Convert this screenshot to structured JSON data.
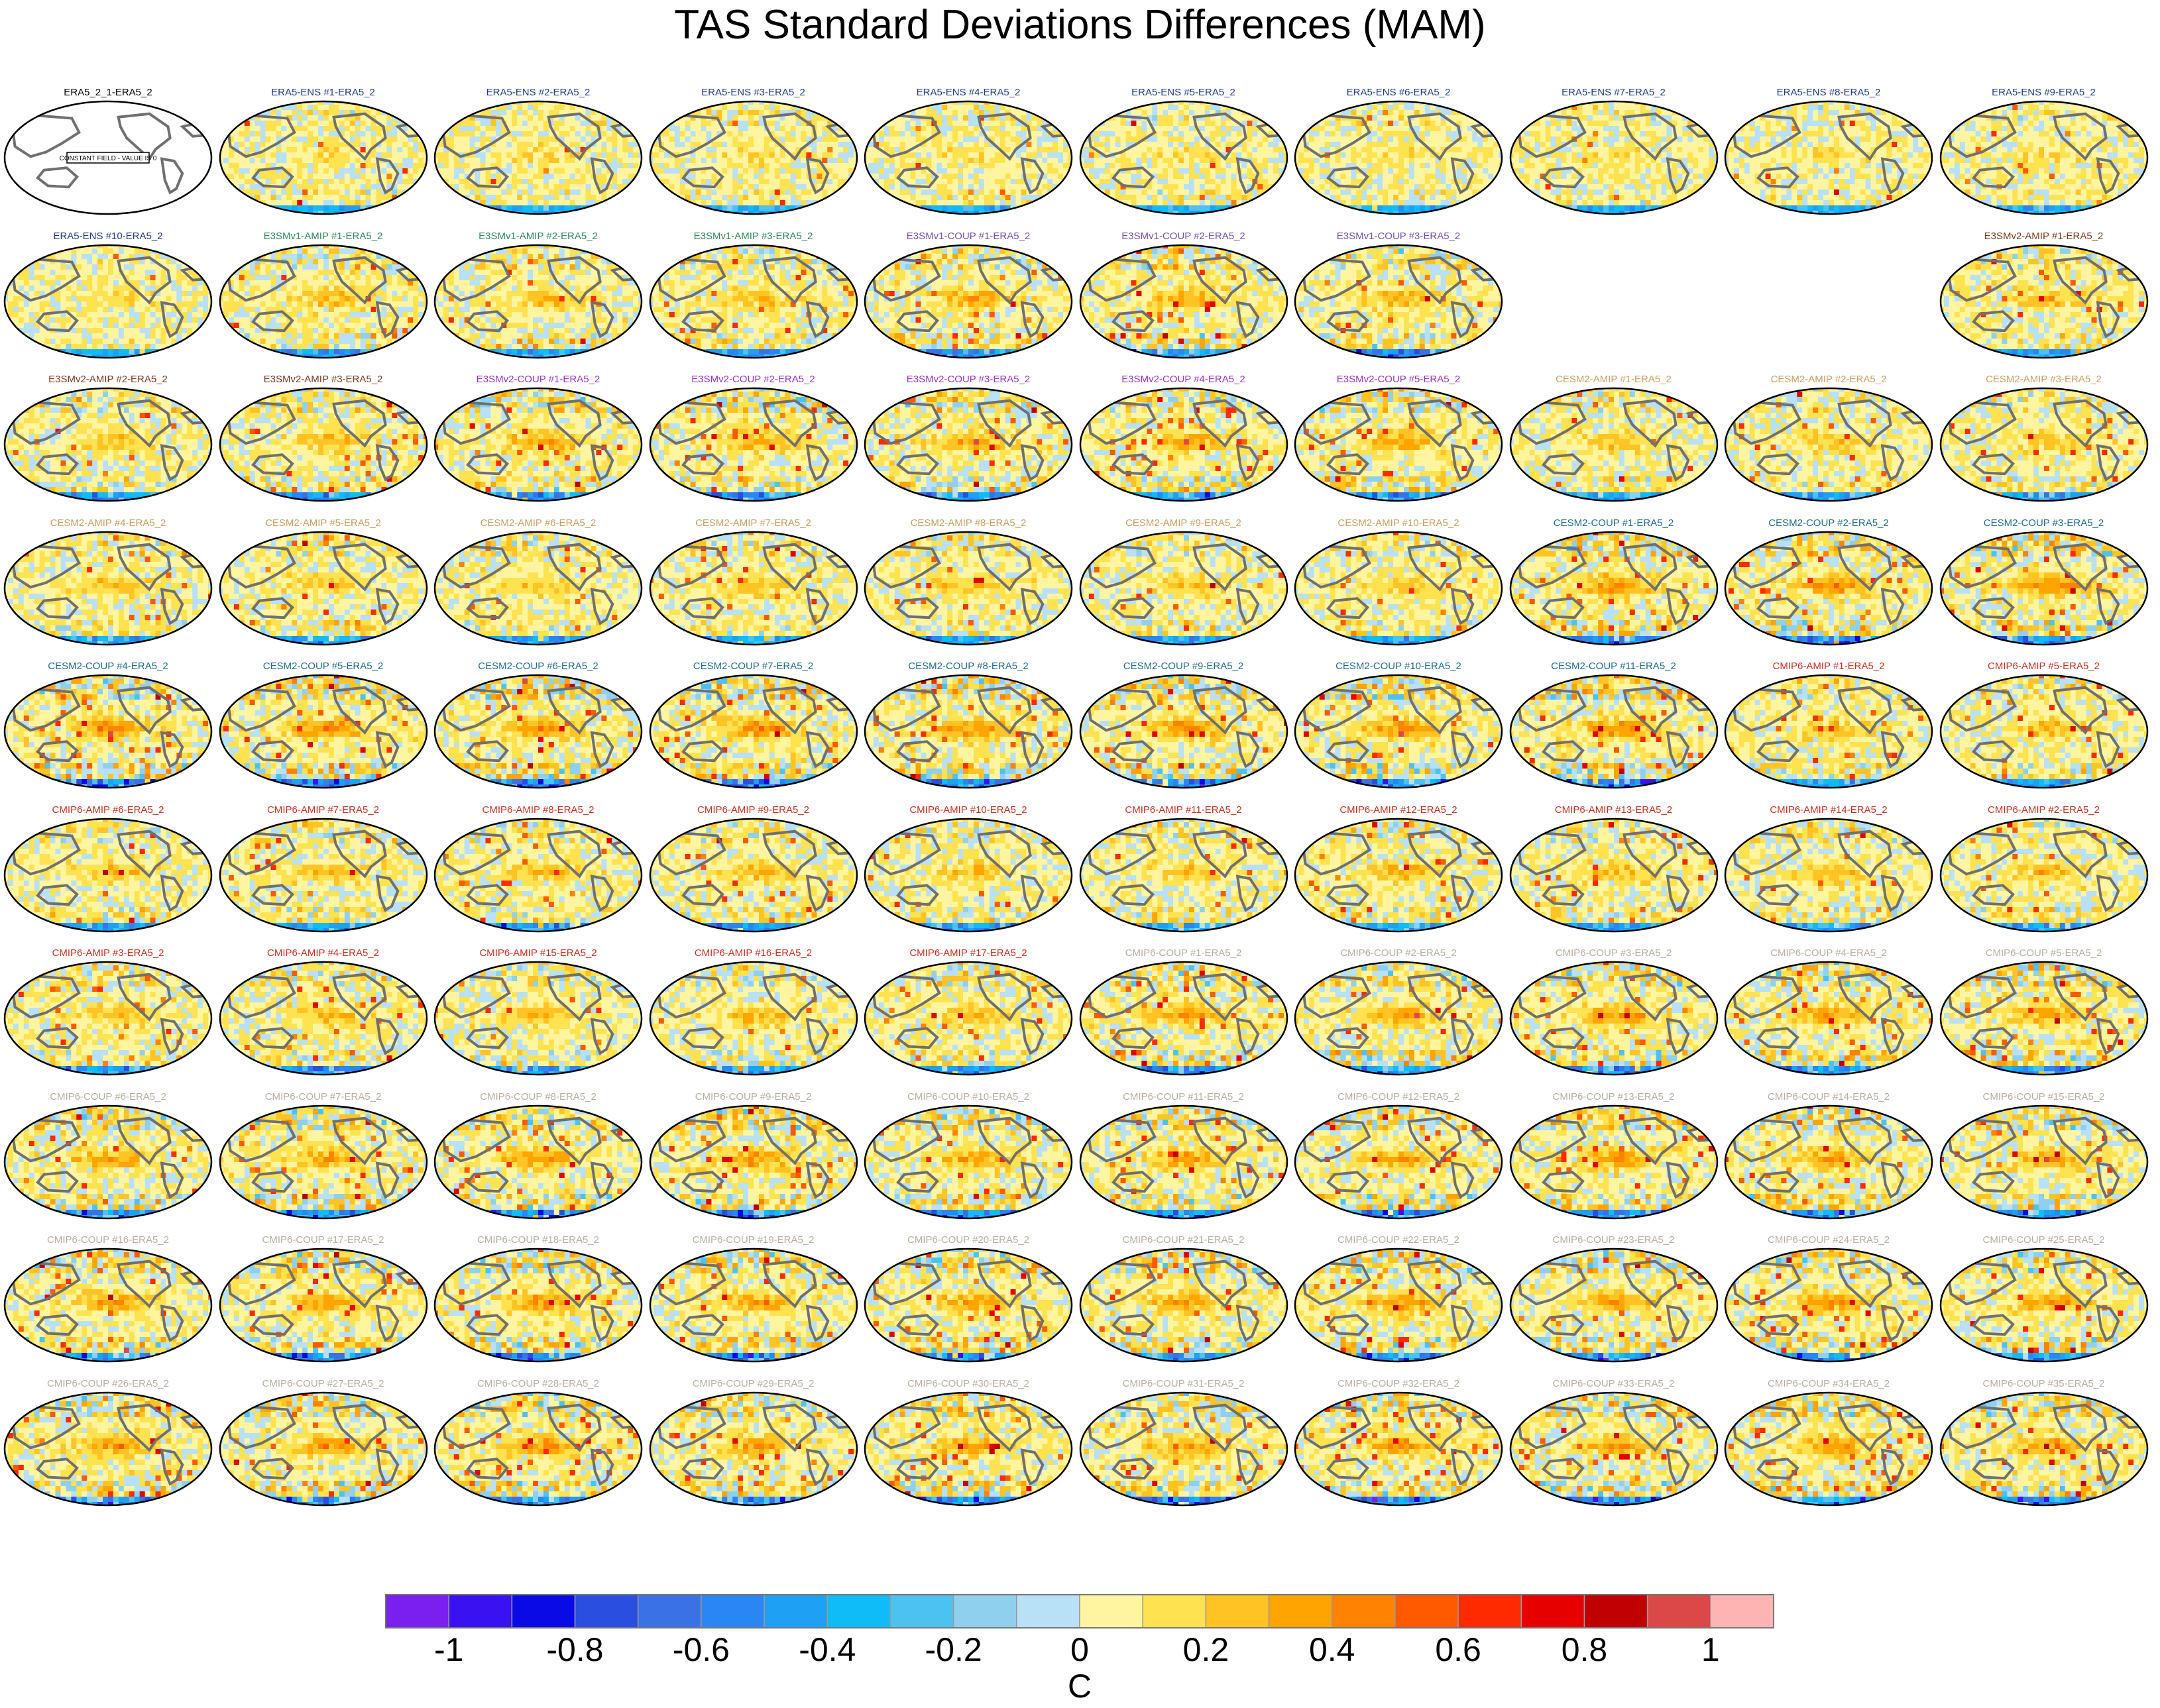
{
  "title": "TAS Standard Deviations Differences (MAM)",
  "panel_note": "CONSTANT FIELD - VALUE IS 0",
  "group_colors": {
    "era": "#1f3b8c",
    "e1amip": "#2e8b57",
    "e1coup": "#7a4fb0",
    "e2amip": "#7a3b1e",
    "e2coup": "#9933cc",
    "cesmamip": "#c8a060",
    "cesmcoup": "#1f6f8b",
    "cmipamip": "#d03020",
    "cmipcoup": "#b8b0a0",
    "ref": "#000000"
  },
  "colorbar": {
    "colors": [
      "#7b1ff0",
      "#3a12f2",
      "#0a0ae6",
      "#2a4ee0",
      "#3a72e6",
      "#2a86f4",
      "#1ea0f4",
      "#10bcf8",
      "#4cc2f2",
      "#8ed0ee",
      "#b8e0f6",
      "#fff5a0",
      "#ffe250",
      "#ffc424",
      "#ffa400",
      "#ff8200",
      "#ff5a00",
      "#ff2a00",
      "#e60000",
      "#c00000",
      "#dc4848",
      "#ffb4b4"
    ],
    "tick_labels": [
      "-1",
      "-0.8",
      "-0.6",
      "-0.4",
      "-0.2",
      "0",
      "0.2",
      "0.4",
      "0.6",
      "0.8",
      "1"
    ],
    "unit_label": "C"
  },
  "chart_data": {
    "type": "heatmap",
    "title": "TAS Standard Deviations Differences (MAM)",
    "projection": "Robinson (Pacific-centered), global maps",
    "value_range": [
      -1.1,
      1.1
    ],
    "unit": "C",
    "layout": "10 rows x 10 columns of map panels",
    "panels": [
      {
        "label": "ERA5_2_1-ERA5_2",
        "group": "ref",
        "intensity": 0,
        "constant": true
      },
      {
        "label": "ERA5-ENS    #1-ERA5_2",
        "group": "era",
        "intensity": 0.3
      },
      {
        "label": "ERA5-ENS    #2-ERA5_2",
        "group": "era",
        "intensity": 0.3
      },
      {
        "label": "ERA5-ENS    #3-ERA5_2",
        "group": "era",
        "intensity": 0.3
      },
      {
        "label": "ERA5-ENS    #4-ERA5_2",
        "group": "era",
        "intensity": 0.3
      },
      {
        "label": "ERA5-ENS    #5-ERA5_2",
        "group": "era",
        "intensity": 0.3
      },
      {
        "label": "ERA5-ENS    #6-ERA5_2",
        "group": "era",
        "intensity": 0.3
      },
      {
        "label": "ERA5-ENS    #7-ERA5_2",
        "group": "era",
        "intensity": 0.3
      },
      {
        "label": "ERA5-ENS    #8-ERA5_2",
        "group": "era",
        "intensity": 0.3
      },
      {
        "label": "ERA5-ENS    #9-ERA5_2",
        "group": "era",
        "intensity": 0.3
      },
      {
        "label": "ERA5-ENS    #10-ERA5_2",
        "group": "era",
        "intensity": 0.3
      },
      {
        "label": "E3SMv1-AMIP #1-ERA5_2",
        "group": "e1amip",
        "intensity": 0.6
      },
      {
        "label": "E3SMv1-AMIP #2-ERA5_2",
        "group": "e1amip",
        "intensity": 0.6
      },
      {
        "label": "E3SMv1-AMIP #3-ERA5_2",
        "group": "e1amip",
        "intensity": 0.6
      },
      {
        "label": "E3SMv1-COUP #1-ERA5_2",
        "group": "e1coup",
        "intensity": 0.8
      },
      {
        "label": "E3SMv1-COUP #2-ERA5_2",
        "group": "e1coup",
        "intensity": 0.8
      },
      {
        "label": "E3SMv1-COUP #3-ERA5_2",
        "group": "e1coup",
        "intensity": 0.8
      },
      {
        "label": "",
        "group": "blank",
        "intensity": 0,
        "blank": true
      },
      {
        "label": "",
        "group": "blank",
        "intensity": 0,
        "blank": true
      },
      {
        "label": "E3SMv2-AMIP #1-ERA5_2",
        "group": "e2amip",
        "intensity": 0.6
      },
      {
        "label": "E3SMv2-AMIP #2-ERA5_2",
        "group": "e2amip",
        "intensity": 0.6
      },
      {
        "label": "E3SMv2-AMIP #3-ERA5_2",
        "group": "e2amip",
        "intensity": 0.6
      },
      {
        "label": "E3SMv2-COUP #1-ERA5_2",
        "group": "e2coup",
        "intensity": 0.8
      },
      {
        "label": "E3SMv2-COUP #2-ERA5_2",
        "group": "e2coup",
        "intensity": 0.8
      },
      {
        "label": "E3SMv2-COUP #3-ERA5_2",
        "group": "e2coup",
        "intensity": 0.8
      },
      {
        "label": "E3SMv2-COUP #4-ERA5_2",
        "group": "e2coup",
        "intensity": 0.8
      },
      {
        "label": "E3SMv2-COUP #5-ERA5_2",
        "group": "e2coup",
        "intensity": 0.8
      },
      {
        "label": "CESM2-AMIP  #1-ERA5_2",
        "group": "cesmamip",
        "intensity": 0.55
      },
      {
        "label": "CESM2-AMIP  #2-ERA5_2",
        "group": "cesmamip",
        "intensity": 0.55
      },
      {
        "label": "CESM2-AMIP  #3-ERA5_2",
        "group": "cesmamip",
        "intensity": 0.55
      },
      {
        "label": "CESM2-AMIP  #4-ERA5_2",
        "group": "cesmamip",
        "intensity": 0.55
      },
      {
        "label": "CESM2-AMIP  #5-ERA5_2",
        "group": "cesmamip",
        "intensity": 0.55
      },
      {
        "label": "CESM2-AMIP  #6-ERA5_2",
        "group": "cesmamip",
        "intensity": 0.55
      },
      {
        "label": "CESM2-AMIP  #7-ERA5_2",
        "group": "cesmamip",
        "intensity": 0.55
      },
      {
        "label": "CESM2-AMIP  #8-ERA5_2",
        "group": "cesmamip",
        "intensity": 0.55
      },
      {
        "label": "CESM2-AMIP  #9-ERA5_2",
        "group": "cesmamip",
        "intensity": 0.55
      },
      {
        "label": "CESM2-AMIP  #10-ERA5_2",
        "group": "cesmamip",
        "intensity": 0.55
      },
      {
        "label": "CESM2-COUP  #1-ERA5_2",
        "group": "cesmcoup",
        "intensity": 1.0
      },
      {
        "label": "CESM2-COUP  #2-ERA5_2",
        "group": "cesmcoup",
        "intensity": 1.0
      },
      {
        "label": "CESM2-COUP  #3-ERA5_2",
        "group": "cesmcoup",
        "intensity": 1.0
      },
      {
        "label": "CESM2-COUP  #4-ERA5_2",
        "group": "cesmcoup",
        "intensity": 1.0
      },
      {
        "label": "CESM2-COUP  #5-ERA5_2",
        "group": "cesmcoup",
        "intensity": 1.0
      },
      {
        "label": "CESM2-COUP  #6-ERA5_2",
        "group": "cesmcoup",
        "intensity": 1.0
      },
      {
        "label": "CESM2-COUP  #7-ERA5_2",
        "group": "cesmcoup",
        "intensity": 1.0
      },
      {
        "label": "CESM2-COUP  #8-ERA5_2",
        "group": "cesmcoup",
        "intensity": 1.0
      },
      {
        "label": "CESM2-COUP  #9-ERA5_2",
        "group": "cesmcoup",
        "intensity": 1.0
      },
      {
        "label": "CESM2-COUP  #10-ERA5_2",
        "group": "cesmcoup",
        "intensity": 1.0
      },
      {
        "label": "CESM2-COUP  #11-ERA5_2",
        "group": "cesmcoup",
        "intensity": 1.0
      },
      {
        "label": "CMIP6-AMIP  #1-ERA5_2",
        "group": "cmipamip",
        "intensity": 0.6
      },
      {
        "label": "CMIP6-AMIP  #5-ERA5_2",
        "group": "cmipamip",
        "intensity": 0.6
      },
      {
        "label": "CMIP6-AMIP  #6-ERA5_2",
        "group": "cmipamip",
        "intensity": 0.6
      },
      {
        "label": "CMIP6-AMIP  #7-ERA5_2",
        "group": "cmipamip",
        "intensity": 0.6
      },
      {
        "label": "CMIP6-AMIP  #8-ERA5_2",
        "group": "cmipamip",
        "intensity": 0.6
      },
      {
        "label": "CMIP6-AMIP  #9-ERA5_2",
        "group": "cmipamip",
        "intensity": 0.6
      },
      {
        "label": "CMIP6-AMIP  #10-ERA5_2",
        "group": "cmipamip",
        "intensity": 0.6
      },
      {
        "label": "CMIP6-AMIP  #11-ERA5_2",
        "group": "cmipamip",
        "intensity": 0.6
      },
      {
        "label": "CMIP6-AMIP  #12-ERA5_2",
        "group": "cmipamip",
        "intensity": 0.6
      },
      {
        "label": "CMIP6-AMIP  #13-ERA5_2",
        "group": "cmipamip",
        "intensity": 0.6
      },
      {
        "label": "CMIP6-AMIP  #14-ERA5_2",
        "group": "cmipamip",
        "intensity": 0.6
      },
      {
        "label": "CMIP6-AMIP  #2-ERA5_2",
        "group": "cmipamip",
        "intensity": 0.6
      },
      {
        "label": "CMIP6-AMIP  #3-ERA5_2",
        "group": "cmipamip",
        "intensity": 0.6
      },
      {
        "label": "CMIP6-AMIP  #4-ERA5_2",
        "group": "cmipamip",
        "intensity": 0.6
      },
      {
        "label": "CMIP6-AMIP  #15-ERA5_2",
        "group": "cmipamip",
        "intensity": 0.6
      },
      {
        "label": "CMIP6-AMIP  #16-ERA5_2",
        "group": "cmipamip",
        "intensity": 0.6
      },
      {
        "label": "CMIP6-AMIP  #17-ERA5_2",
        "group": "cmipamip",
        "intensity": 0.6
      },
      {
        "label": "CMIP6-COUP  #1-ERA5_2",
        "group": "cmipcoup",
        "intensity": 0.9
      },
      {
        "label": "CMIP6-COUP  #2-ERA5_2",
        "group": "cmipcoup",
        "intensity": 0.9
      },
      {
        "label": "CMIP6-COUP  #3-ERA5_2",
        "group": "cmipcoup",
        "intensity": 0.9
      },
      {
        "label": "CMIP6-COUP  #4-ERA5_2",
        "group": "cmipcoup",
        "intensity": 0.9
      },
      {
        "label": "CMIP6-COUP  #5-ERA5_2",
        "group": "cmipcoup",
        "intensity": 0.9
      },
      {
        "label": "CMIP6-COUP  #6-ERA5_2",
        "group": "cmipcoup",
        "intensity": 0.9
      },
      {
        "label": "CMIP6-COUP  #7-ERA5_2",
        "group": "cmipcoup",
        "intensity": 0.9
      },
      {
        "label": "CMIP6-COUP  #8-ERA5_2",
        "group": "cmipcoup",
        "intensity": 0.9
      },
      {
        "label": "CMIP6-COUP  #9-ERA5_2",
        "group": "cmipcoup",
        "intensity": 0.9
      },
      {
        "label": "CMIP6-COUP  #10-ERA5_2",
        "group": "cmipcoup",
        "intensity": 0.9
      },
      {
        "label": "CMIP6-COUP  #11-ERA5_2",
        "group": "cmipcoup",
        "intensity": 0.9
      },
      {
        "label": "CMIP6-COUP  #12-ERA5_2",
        "group": "cmipcoup",
        "intensity": 0.9
      },
      {
        "label": "CMIP6-COUP  #13-ERA5_2",
        "group": "cmipcoup",
        "intensity": 0.9
      },
      {
        "label": "CMIP6-COUP  #14-ERA5_2",
        "group": "cmipcoup",
        "intensity": 0.9
      },
      {
        "label": "CMIP6-COUP  #15-ERA5_2",
        "group": "cmipcoup",
        "intensity": 0.9
      },
      {
        "label": "CMIP6-COUP  #16-ERA5_2",
        "group": "cmipcoup",
        "intensity": 0.9
      },
      {
        "label": "CMIP6-COUP  #17-ERA5_2",
        "group": "cmipcoup",
        "intensity": 0.9
      },
      {
        "label": "CMIP6-COUP  #18-ERA5_2",
        "group": "cmipcoup",
        "intensity": 0.9
      },
      {
        "label": "CMIP6-COUP  #19-ERA5_2",
        "group": "cmipcoup",
        "intensity": 0.9
      },
      {
        "label": "CMIP6-COUP  #20-ERA5_2",
        "group": "cmipcoup",
        "intensity": 0.9
      },
      {
        "label": "CMIP6-COUP  #21-ERA5_2",
        "group": "cmipcoup",
        "intensity": 0.9
      },
      {
        "label": "CMIP6-COUP  #22-ERA5_2",
        "group": "cmipcoup",
        "intensity": 0.9
      },
      {
        "label": "CMIP6-COUP  #23-ERA5_2",
        "group": "cmipcoup",
        "intensity": 0.9
      },
      {
        "label": "CMIP6-COUP  #24-ERA5_2",
        "group": "cmipcoup",
        "intensity": 0.9
      },
      {
        "label": "CMIP6-COUP  #25-ERA5_2",
        "group": "cmipcoup",
        "intensity": 0.9
      },
      {
        "label": "CMIP6-COUP  #26-ERA5_2",
        "group": "cmipcoup",
        "intensity": 0.9
      },
      {
        "label": "CMIP6-COUP  #27-ERA5_2",
        "group": "cmipcoup",
        "intensity": 0.9
      },
      {
        "label": "CMIP6-COUP  #28-ERA5_2",
        "group": "cmipcoup",
        "intensity": 0.9
      },
      {
        "label": "CMIP6-COUP  #29-ERA5_2",
        "group": "cmipcoup",
        "intensity": 0.9
      },
      {
        "label": "CMIP6-COUP  #30-ERA5_2",
        "group": "cmipcoup",
        "intensity": 0.9
      },
      {
        "label": "CMIP6-COUP  #31-ERA5_2",
        "group": "cmipcoup",
        "intensity": 0.9
      },
      {
        "label": "CMIP6-COUP  #32-ERA5_2",
        "group": "cmipcoup",
        "intensity": 0.9
      },
      {
        "label": "CMIP6-COUP  #33-ERA5_2",
        "group": "cmipcoup",
        "intensity": 0.9
      },
      {
        "label": "CMIP6-COUP  #34-ERA5_2",
        "group": "cmipcoup",
        "intensity": 0.9
      },
      {
        "label": "CMIP6-COUP  #35-ERA5_2",
        "group": "cmipcoup",
        "intensity": 0.9
      }
    ]
  }
}
